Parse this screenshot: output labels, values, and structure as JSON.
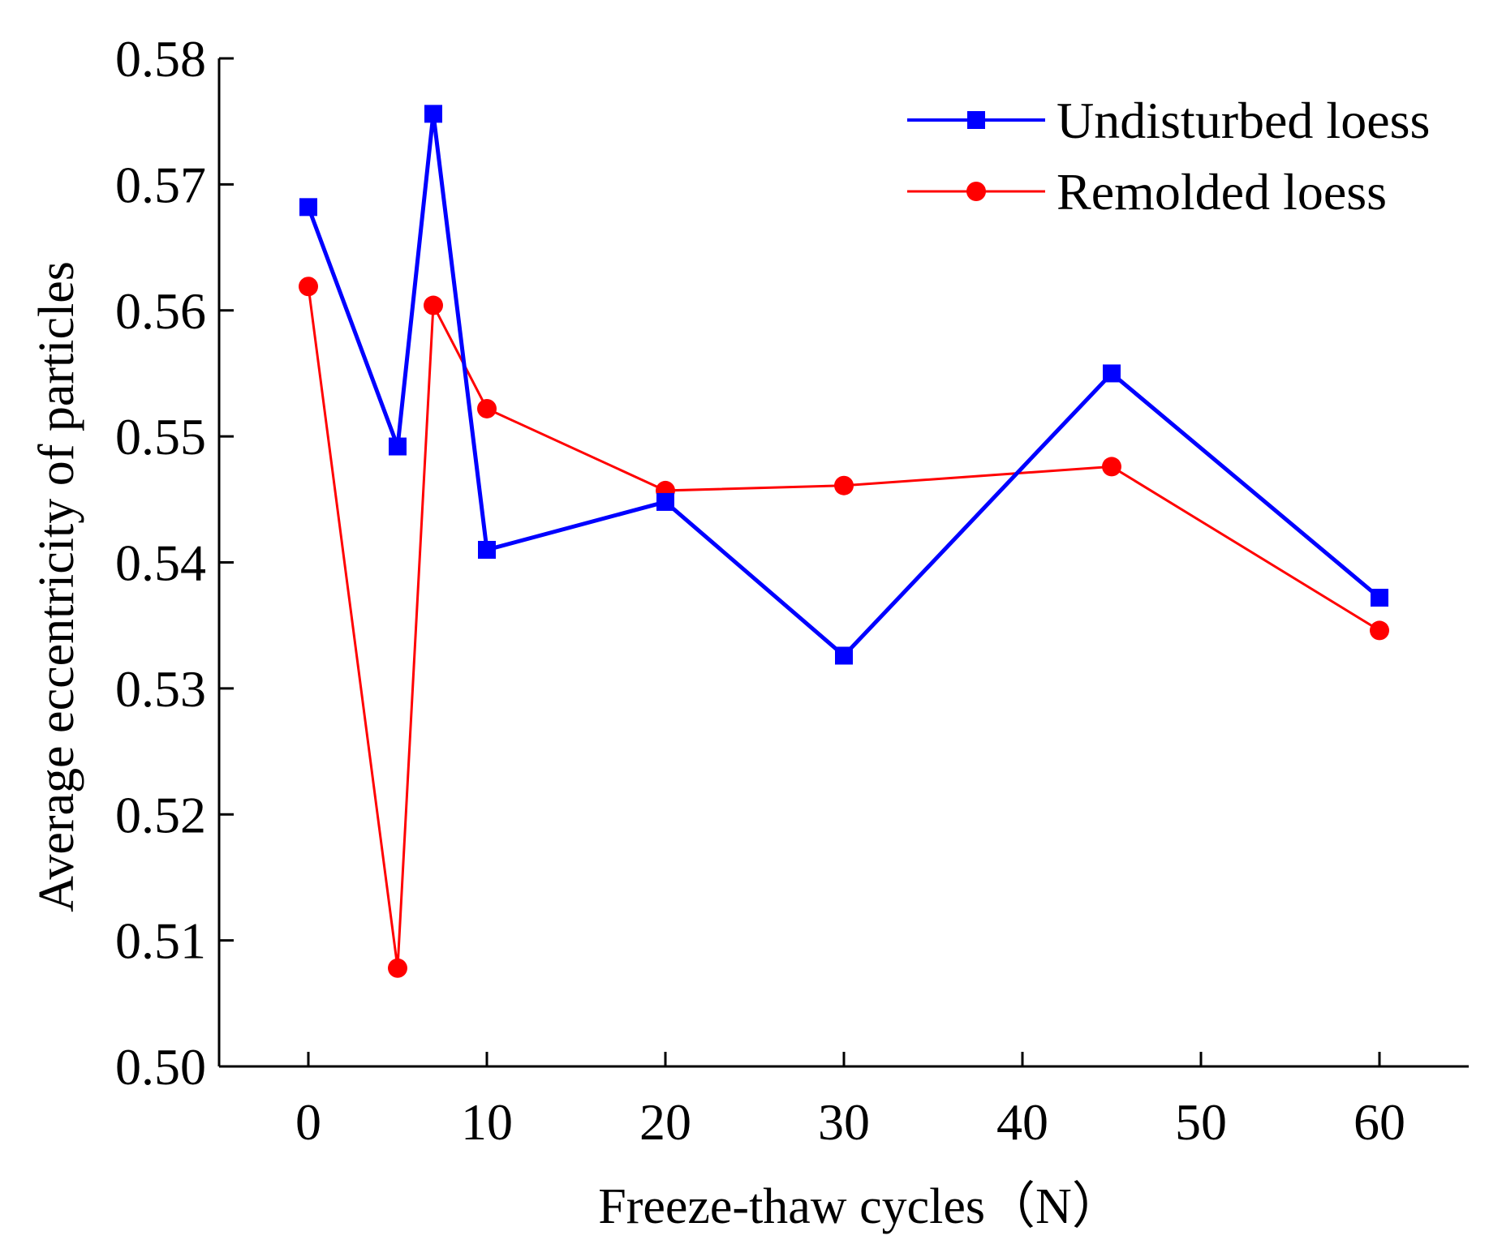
{
  "chart_data": {
    "type": "line",
    "xlabel": "Freeze-thaw cycles（N）",
    "ylabel": "Average eccentricity of particles",
    "xlim": [
      -5,
      65
    ],
    "ylim": [
      0.5,
      0.58
    ],
    "xticks": [
      0,
      10,
      20,
      30,
      40,
      50,
      60
    ],
    "yticks": [
      0.5,
      0.51,
      0.52,
      0.53,
      0.54,
      0.55,
      0.56,
      0.57,
      0.58
    ],
    "xtick_labels": [
      "0",
      "10",
      "20",
      "30",
      "40",
      "50",
      "60"
    ],
    "ytick_labels": [
      "0.50",
      "0.51",
      "0.52",
      "0.53",
      "0.54",
      "0.55",
      "0.56",
      "0.57",
      "0.58"
    ],
    "grid": false,
    "legend_position": "top-right",
    "series": [
      {
        "name": "Undisturbed loess",
        "marker": "square",
        "color": "#0000ff",
        "x": [
          0,
          5,
          7,
          10,
          20,
          30,
          45,
          60
        ],
        "y": [
          0.5682,
          0.5492,
          0.5756,
          0.541,
          0.5448,
          0.5326,
          0.555,
          0.5372
        ]
      },
      {
        "name": "Remolded loess",
        "marker": "circle",
        "color": "#ff0000",
        "x": [
          0,
          5,
          7,
          10,
          20,
          30,
          45,
          60
        ],
        "y": [
          0.5619,
          0.5078,
          0.5604,
          0.5522,
          0.5457,
          0.5461,
          0.5476,
          0.5346
        ]
      }
    ]
  }
}
